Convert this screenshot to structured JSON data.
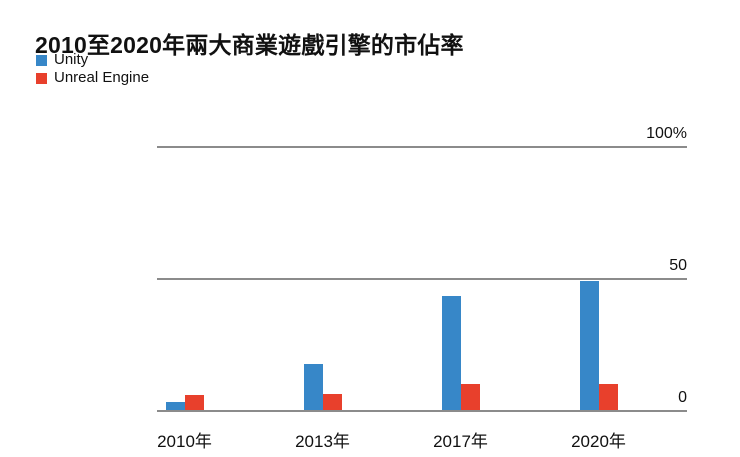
{
  "title": "2010至2020年兩大商業遊戲引擎的市佔率",
  "chart_data": {
    "type": "bar",
    "title": "2010至2020年兩大商業遊戲引擎的市佔率",
    "categories": [
      "2010年",
      "2013年",
      "2017年",
      "2020年"
    ],
    "series": [
      {
        "name": "Unity",
        "color": "#3787C8",
        "values": [
          3,
          17.5,
          43,
          49
        ]
      },
      {
        "name": "Unreal Engine",
        "color": "#E8402C",
        "values": [
          5.5,
          6,
          10,
          10
        ]
      }
    ],
    "xlabel": "",
    "ylabel": "",
    "ylim": [
      0,
      100
    ],
    "yticks": [
      {
        "value": 100,
        "label": "100%"
      },
      {
        "value": 50,
        "label": "50"
      },
      {
        "value": 0,
        "label": "0"
      }
    ],
    "grid": true,
    "legend_position": "top-left",
    "colors": {
      "text": "#111111",
      "gridline": "#8B8B8B",
      "background": "#FFFFFF"
    }
  }
}
